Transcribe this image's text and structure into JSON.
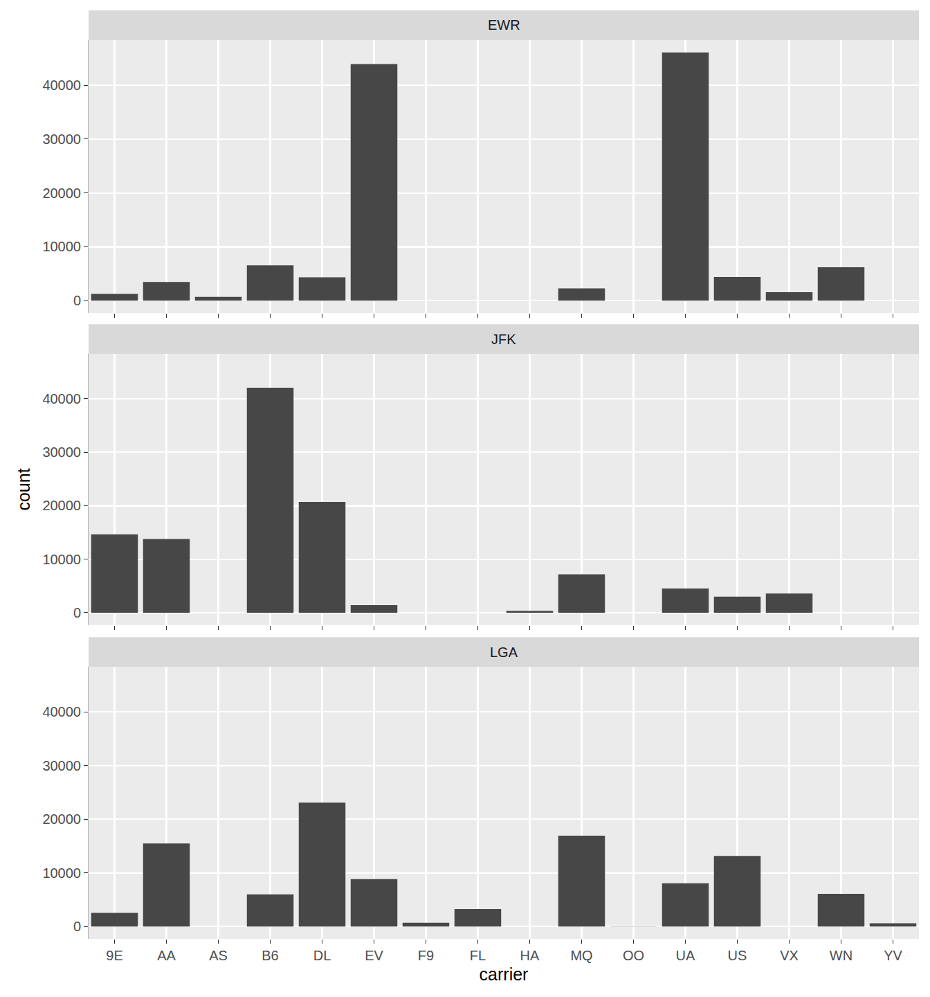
{
  "chart_data": [
    {
      "type": "bar",
      "title": "EWR",
      "categories": [
        "9E",
        "AA",
        "AS",
        "B6",
        "DL",
        "EV",
        "F9",
        "FL",
        "HA",
        "MQ",
        "OO",
        "UA",
        "US",
        "VX",
        "WN",
        "YV"
      ],
      "values": [
        1268,
        3487,
        714,
        6557,
        4342,
        43939,
        null,
        null,
        null,
        2276,
        6,
        46087,
        4405,
        1566,
        6188,
        null
      ],
      "color": "#474747",
      "ylim": [
        -2304,
        48391
      ],
      "yticks": [
        0,
        10000,
        20000,
        30000,
        40000
      ],
      "grid": true,
      "tick_labels": "y"
    },
    {
      "type": "bar",
      "title": "JFK",
      "y_label": "count",
      "categories": [
        "9E",
        "AA",
        "AS",
        "B6",
        "DL",
        "EV",
        "F9",
        "FL",
        "HA",
        "MQ",
        "OO",
        "UA",
        "US",
        "VX",
        "WN",
        "YV"
      ],
      "values": [
        14651,
        13783,
        null,
        42076,
        20701,
        1408,
        null,
        null,
        342,
        7193,
        null,
        4534,
        2995,
        3596,
        null,
        null
      ],
      "color": "#474747",
      "ylim": [
        -2304,
        48391
      ],
      "yticks": [
        0,
        10000,
        20000,
        30000,
        40000
      ],
      "grid": true,
      "tick_labels": "y"
    },
    {
      "type": "bar",
      "title": "LGA",
      "x_label": "carrier",
      "categories": [
        "9E",
        "AA",
        "AS",
        "B6",
        "DL",
        "EV",
        "F9",
        "FL",
        "HA",
        "MQ",
        "OO",
        "UA",
        "US",
        "VX",
        "WN",
        "YV"
      ],
      "values": [
        2541,
        15459,
        null,
        6002,
        23067,
        8826,
        685,
        3260,
        null,
        16928,
        26,
        8044,
        13136,
        null,
        6087,
        601
      ],
      "color": "#474747",
      "ylim": [
        -2304,
        48391
      ],
      "yticks": [
        0,
        10000,
        20000,
        30000,
        40000
      ],
      "grid": true
    }
  ]
}
